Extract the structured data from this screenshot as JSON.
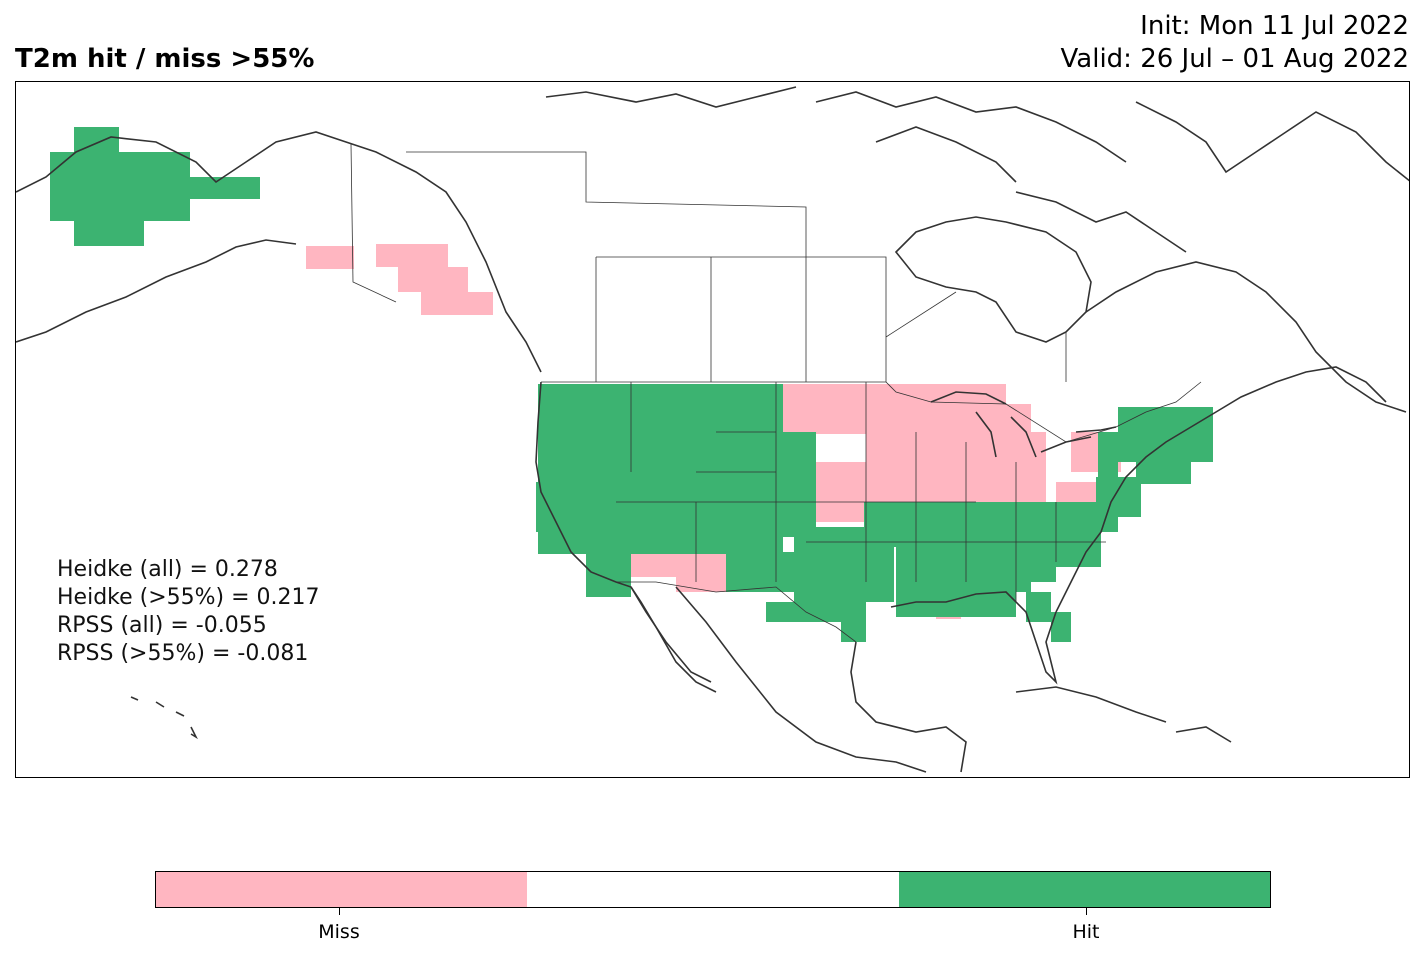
{
  "title": "T2m hit / miss  >55%",
  "init_line": "Init: Mon 11 Jul 2022",
  "valid_line": "Valid: 26 Jul – 01 Aug 2022",
  "scores": [
    "Heidke (all) = 0.278",
    "Heidke (>55%) = 0.217",
    "RPSS (all) = -0.055",
    "RPSS (>55%) = -0.081"
  ],
  "colors": {
    "miss": "#ffb6c1",
    "neutral": "#ffffff",
    "hit": "#3cb371",
    "coast": "#333333"
  },
  "legend": {
    "miss_label": "Miss",
    "hit_label": "Hit"
  },
  "regions": {
    "hit": [
      "Alaska (west)",
      "US Pacific Northwest",
      "US Northern Rockies",
      "US Southwest coast",
      "US Southern Plains",
      "US Southeast",
      "US Northeast",
      "Florida"
    ],
    "miss": [
      "Alaska panhandle",
      "US Upper Midwest",
      "Great Lakes",
      "Four Corners",
      "Lower Mississippi"
    ]
  }
}
